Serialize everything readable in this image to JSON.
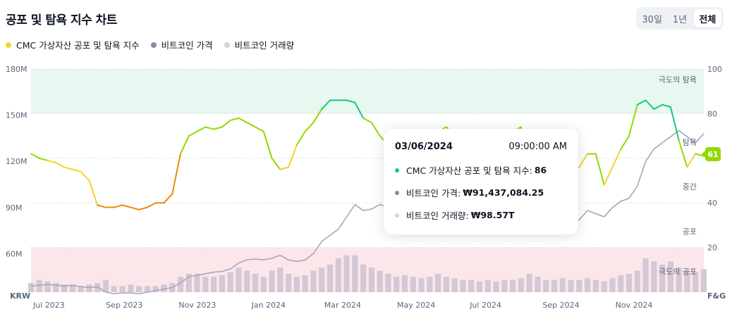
{
  "title": "공포 및 탐욕 지수 차트",
  "range_buttons": [
    "30일",
    "1년",
    "전체"
  ],
  "active_range": 2,
  "legend": [
    {
      "label": "CMC 가상자산 공포 및 탐욕 지수",
      "color": "#f3d42f"
    },
    {
      "label": "비트코인 가격",
      "color": "#858ca2"
    },
    {
      "label": "비트코인 거래량",
      "color": "#d1d4e3"
    }
  ],
  "tooltip": {
    "date": "03/06/2024",
    "time": "09:00:00 AM",
    "rows": [
      {
        "label": "CMC 가상자산 공포 및 탐욕 지수:",
        "value": "86",
        "color": "#16c784"
      },
      {
        "label": "비트코인 가격:",
        "value": "₩91,437,084.25",
        "color": "#858ca2"
      },
      {
        "label": "비트코인 거래량:",
        "value": "₩98.57T",
        "color": "#d1d4e3"
      }
    ]
  },
  "badge": "61",
  "chart_data": {
    "type": "line",
    "x": [
      "2023-06-15",
      "2023-06-22",
      "2023-06-29",
      "2023-07-06",
      "2023-07-13",
      "2023-07-20",
      "2023-07-27",
      "2023-08-03",
      "2023-08-10",
      "2023-08-17",
      "2023-08-24",
      "2023-08-31",
      "2023-09-07",
      "2023-09-14",
      "2023-09-21",
      "2023-09-28",
      "2023-10-05",
      "2023-10-12",
      "2023-10-19",
      "2023-10-26",
      "2023-11-02",
      "2023-11-09",
      "2023-11-16",
      "2023-11-23",
      "2023-11-30",
      "2023-12-07",
      "2023-12-14",
      "2023-12-21",
      "2023-12-28",
      "2024-01-04",
      "2024-01-11",
      "2024-01-18",
      "2024-01-25",
      "2024-02-01",
      "2024-02-08",
      "2024-02-15",
      "2024-02-22",
      "2024-02-29",
      "2024-03-06",
      "2024-03-13",
      "2024-03-20",
      "2024-03-27",
      "2024-04-03",
      "2024-04-10",
      "2024-04-17",
      "2024-04-24",
      "2024-05-01",
      "2024-05-08",
      "2024-05-15",
      "2024-05-22",
      "2024-05-29",
      "2024-06-05",
      "2024-06-12",
      "2024-06-19",
      "2024-06-26",
      "2024-07-03",
      "2024-07-10",
      "2024-07-17",
      "2024-07-24",
      "2024-07-31",
      "2024-08-07",
      "2024-08-14",
      "2024-08-21",
      "2024-08-28",
      "2024-09-04",
      "2024-09-11",
      "2024-09-18",
      "2024-09-25",
      "2024-10-02",
      "2024-10-09",
      "2024-10-16",
      "2024-10-23",
      "2024-10-30",
      "2024-11-06",
      "2024-11-13",
      "2024-11-20",
      "2024-11-27",
      "2024-12-04",
      "2024-12-11",
      "2024-12-18",
      "2024-12-25",
      "2025-01-01"
    ],
    "series": [
      {
        "name": "CMC 가상자산 공포 및 탐욕 지수",
        "axis": "right",
        "values": [
          62,
          60,
          59,
          58,
          56,
          55,
          54,
          50,
          39,
          38,
          38,
          39,
          38,
          37,
          38,
          40,
          40,
          44,
          62,
          70,
          72,
          74,
          73,
          74,
          77,
          78,
          76,
          74,
          72,
          60,
          55,
          56,
          66,
          72,
          76,
          82,
          86,
          86,
          86,
          85,
          78,
          76,
          70,
          66,
          66,
          62,
          59,
          60,
          68,
          72,
          74,
          70,
          66,
          61,
          58,
          55,
          50,
          66,
          72,
          74,
          48,
          52,
          56,
          60,
          54,
          56,
          56,
          62,
          62,
          48,
          56,
          64,
          70,
          84,
          86,
          82,
          84,
          83,
          68,
          56,
          62,
          61
        ]
      },
      {
        "name": "비트코인 가격",
        "axis": "left",
        "unit": "KRW",
        "values": [
          39,
          39.5,
          40,
          39.5,
          39,
          39.5,
          38.5,
          38,
          38.5,
          35,
          34,
          34.5,
          34.5,
          34,
          35,
          36,
          37,
          38,
          41,
          45,
          46,
          47,
          48,
          48.5,
          50,
          54,
          56,
          56.5,
          56,
          57,
          59,
          56,
          55,
          56,
          60,
          68,
          72,
          76,
          84,
          92,
          88,
          89,
          92,
          90,
          86,
          88,
          82,
          84,
          88,
          92,
          91,
          90,
          89,
          88,
          84,
          80,
          78,
          86,
          90,
          88,
          78,
          82,
          80,
          84,
          78,
          80,
          82,
          88,
          86,
          84,
          90,
          94,
          96,
          104,
          120,
          128,
          132,
          136,
          140,
          136,
          132,
          138
        ]
      },
      {
        "name": "비트코인 거래량",
        "axis": "left",
        "unit": "KRW",
        "values": [
          6,
          8,
          7,
          6,
          5,
          5,
          4,
          5,
          6,
          8,
          4,
          4,
          5,
          4,
          4,
          4,
          5,
          6,
          10,
          12,
          12,
          10,
          10,
          11,
          13,
          16,
          14,
          12,
          10,
          14,
          16,
          12,
          10,
          11,
          14,
          16,
          18,
          22,
          24,
          24,
          18,
          16,
          14,
          12,
          10,
          11,
          10,
          9,
          10,
          12,
          10,
          9,
          8,
          8,
          7,
          8,
          7,
          8,
          8,
          9,
          12,
          10,
          8,
          8,
          9,
          8,
          8,
          9,
          8,
          7,
          9,
          11,
          12,
          14,
          22,
          20,
          18,
          20,
          16,
          14,
          13,
          15
        ]
      }
    ],
    "x_ticks": [
      "Jul 2023",
      "Sep 2023",
      "Nov 2023",
      "Jan 2024",
      "Mar 2024",
      "May 2024",
      "Jul 2024",
      "Sep 2024",
      "Nov 2024"
    ],
    "y_left_ticks": [
      "60M",
      "90M",
      "120M",
      "150M",
      "180M"
    ],
    "y_right_ticks": [
      "20",
      "40",
      "60",
      "80",
      "100"
    ],
    "y_left_unit": "KRW",
    "y_right_unit": "F&G",
    "ylim_left": [
      35,
      180
    ],
    "ylim_right": [
      0,
      100
    ],
    "zones": [
      {
        "label": "극도의 탐욕",
        "from": 80,
        "to": 100,
        "color": "#e6f8f0"
      },
      {
        "label": "탐욕",
        "value": 70
      },
      {
        "label": "중간",
        "value": 50
      },
      {
        "label": "공포",
        "value": 30
      },
      {
        "label": "극도의 공포",
        "from": 0,
        "to": 20,
        "color": "#fbe7ea"
      }
    ],
    "fg_colors": {
      "extreme_greed": "#16c784",
      "greed": "#93d900",
      "neutral": "#f3d42f",
      "fear": "#ea8c00",
      "extreme_fear": "#ea3943"
    },
    "grid": true
  }
}
